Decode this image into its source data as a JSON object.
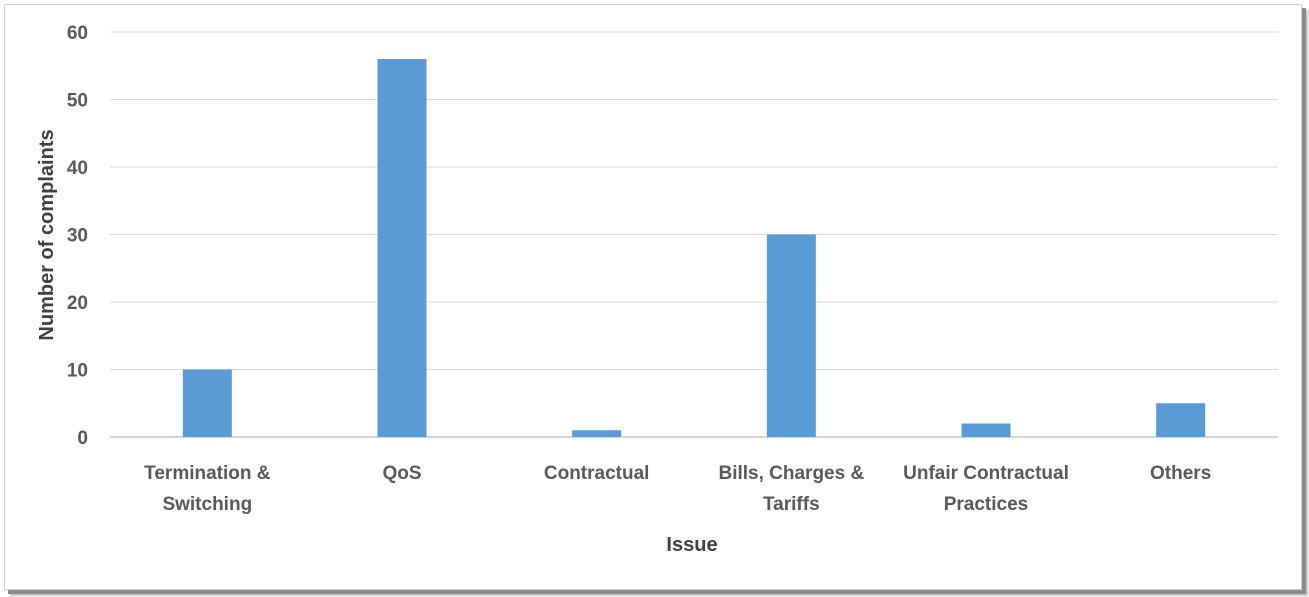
{
  "chart_data": {
    "type": "bar",
    "title": "",
    "xlabel": "Issue",
    "ylabel": "Number of complaints",
    "categories": [
      [
        "Termination &",
        "Switching"
      ],
      [
        "QoS"
      ],
      [
        "Contractual"
      ],
      [
        "Bills, Charges &",
        "Tariffs"
      ],
      [
        "Unfair Contractual",
        "Practices"
      ],
      [
        "Others"
      ]
    ],
    "values": [
      10,
      56,
      1,
      30,
      2,
      5
    ],
    "ylim": [
      0,
      60
    ],
    "yticks": [
      "0",
      "10",
      "20",
      "30",
      "40",
      "50",
      "60"
    ],
    "grid": true,
    "legend": "none",
    "bar_color": "#5b9bd5"
  }
}
